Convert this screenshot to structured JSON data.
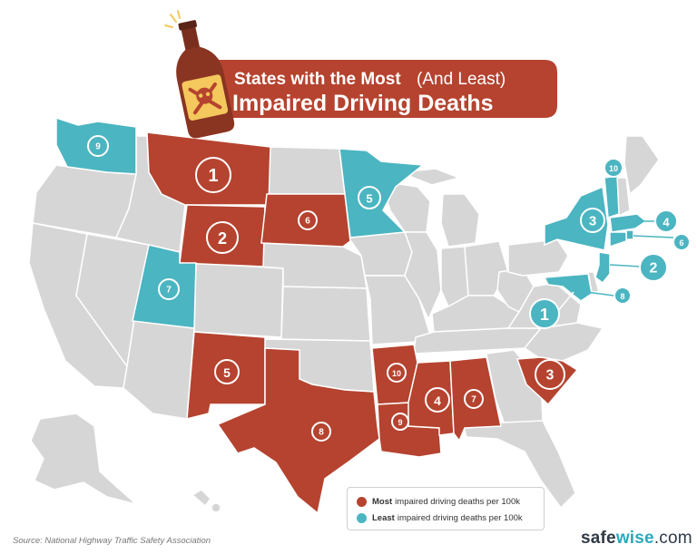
{
  "title": {
    "line1_a": "States with the Most",
    "line1_b": "(And Least)",
    "line2": "Impaired Driving Deaths"
  },
  "colors": {
    "most": "#b5432f",
    "least": "#4bb5c1",
    "other": "#d6d6d6",
    "title_banner": "#b5432f"
  },
  "most_states": [
    {
      "rank": "1",
      "state": "Montana"
    },
    {
      "rank": "2",
      "state": "Wyoming"
    },
    {
      "rank": "3",
      "state": "South Carolina"
    },
    {
      "rank": "4",
      "state": "Mississippi"
    },
    {
      "rank": "5",
      "state": "New Mexico"
    },
    {
      "rank": "6",
      "state": "South Dakota"
    },
    {
      "rank": "7",
      "state": "Alabama"
    },
    {
      "rank": "8",
      "state": "Texas"
    },
    {
      "rank": "9",
      "state": "Louisiana"
    },
    {
      "rank": "10",
      "state": "Arkansas"
    }
  ],
  "least_states": [
    {
      "rank": "1",
      "state": "District of Columbia"
    },
    {
      "rank": "2",
      "state": "New Jersey"
    },
    {
      "rank": "3",
      "state": "New York"
    },
    {
      "rank": "4",
      "state": "Massachusetts"
    },
    {
      "rank": "5",
      "state": "Minnesota"
    },
    {
      "rank": "6",
      "state": "Rhode Island"
    },
    {
      "rank": "7",
      "state": "Utah"
    },
    {
      "rank": "8",
      "state": "Maryland"
    },
    {
      "rank": "9",
      "state": "Washington"
    },
    {
      "rank": "10",
      "state": "Vermont"
    }
  ],
  "legend": {
    "most_strong": "Most",
    "most_rest": "impaired driving deaths per 100k",
    "least_strong": "Least",
    "least_rest": "impaired driving deaths per 100k"
  },
  "source": "Source: National Highway Traffic Safety Association",
  "brand": {
    "part1": "safe",
    "part2": "wise",
    "part3": ".com"
  },
  "icons": [
    "bottle-icon",
    "skull-crossbones-icon"
  ]
}
